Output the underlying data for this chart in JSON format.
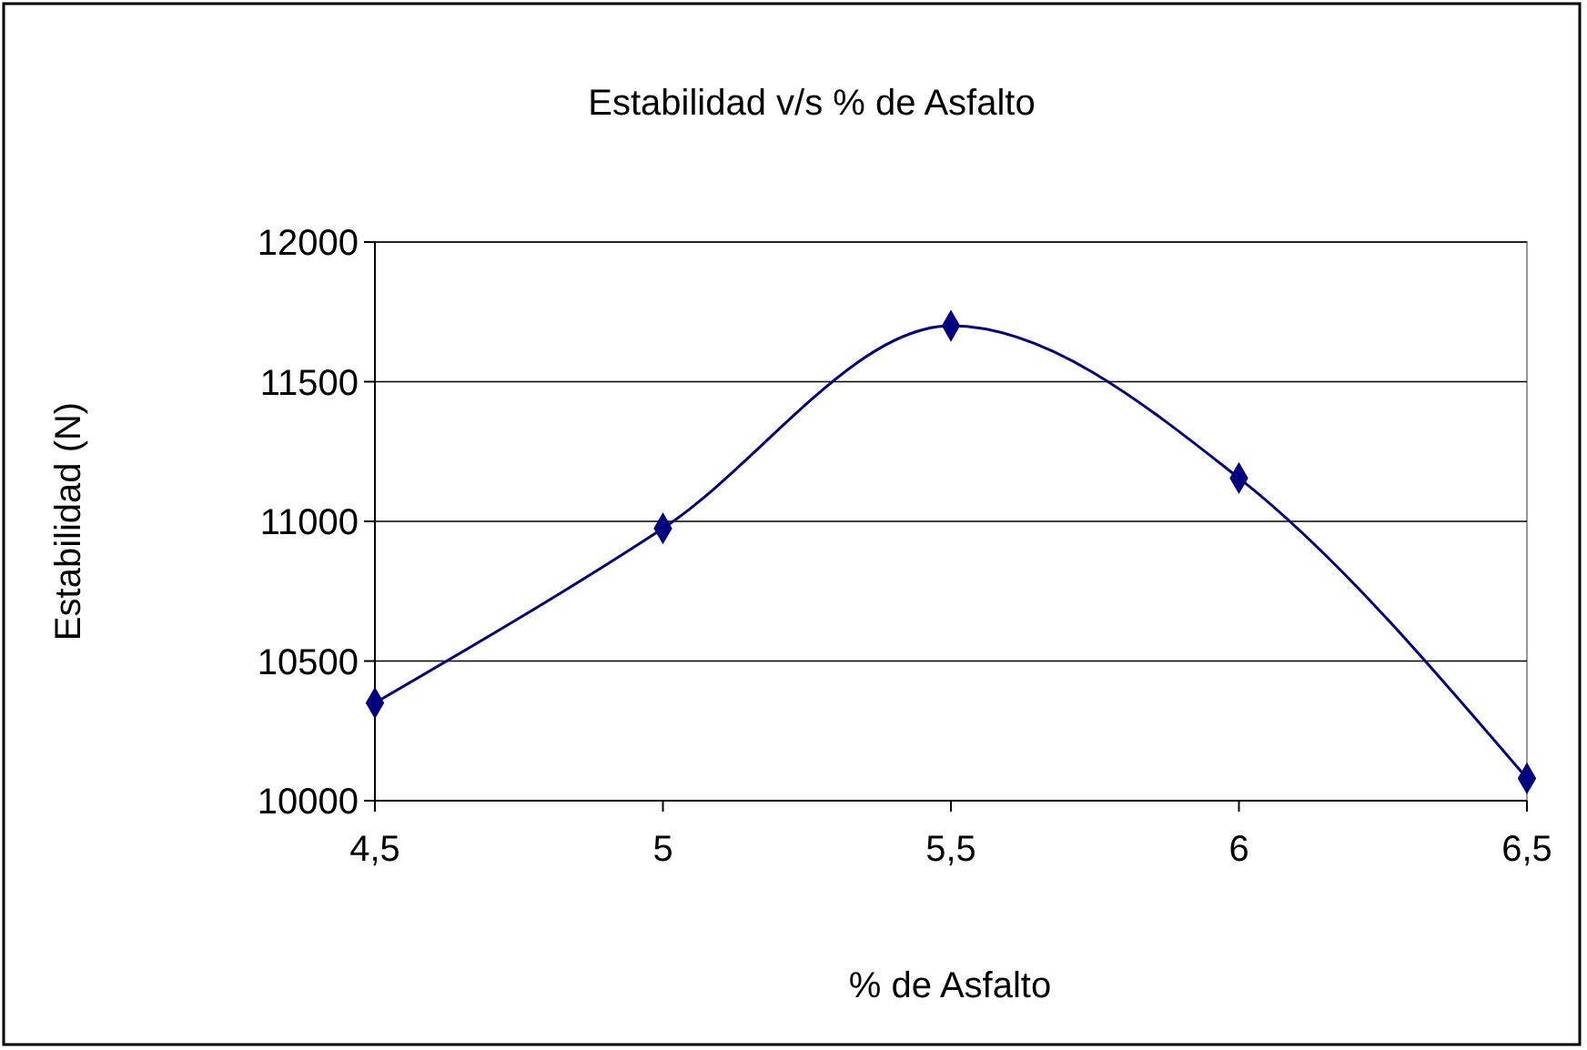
{
  "chart_data": {
    "type": "line",
    "title": "Estabilidad v/s % de Asfalto",
    "xlabel": "% de Asfalto",
    "ylabel": "Estabilidad (N)",
    "x": [
      4.5,
      5,
      5.5,
      6,
      6.5
    ],
    "series": [
      {
        "color": "#000080",
        "values": [
          10350,
          10975,
          11700,
          11155,
          10080
        ]
      }
    ],
    "xlim": [
      4.5,
      6.5
    ],
    "xticks": [
      {
        "value": 4.5,
        "label": "4,5"
      },
      5,
      {
        "value": 5.5,
        "label": "5,5"
      },
      6,
      {
        "value": 6.5,
        "label": "6,5"
      }
    ],
    "ylim": [
      10000,
      12000
    ],
    "yticks": [
      10000,
      10500,
      11000,
      11500,
      12000
    ],
    "grid": "y",
    "marker": "diamond",
    "line_style": "solid"
  }
}
